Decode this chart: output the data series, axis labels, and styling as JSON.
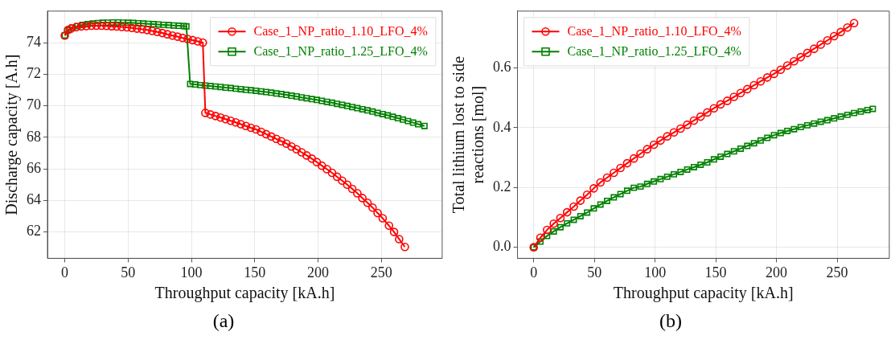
{
  "chart_data": [
    {
      "type": "line",
      "xlabel": "Throughput capacity [kA.h]",
      "ylabel": "Discharge capacity [A.h]",
      "xlim": [
        -13.7,
        298
      ],
      "xticks": [
        0,
        50,
        100,
        150,
        200,
        250
      ],
      "ylim": [
        60.33,
        76.0
      ],
      "yticks": [
        62,
        64,
        66,
        68,
        70,
        72,
        74
      ],
      "grid": true,
      "legend": "top right",
      "line_style": "solid",
      "annotations": [
        "(a)"
      ],
      "series": [
        {
          "name": "Case_1_NP_ratio_1.10_LFO_4%",
          "color": "#ff0000",
          "marker": "circle",
          "x": [
            0,
            2.5,
            5,
            9,
            13,
            17,
            21,
            25,
            29,
            33,
            37,
            41,
            45,
            49,
            53,
            57,
            61,
            65,
            69,
            73,
            77,
            81,
            85,
            89,
            93,
            97,
            101,
            105,
            109,
            111,
            115,
            119,
            123,
            127,
            131,
            135,
            139,
            143,
            147,
            151,
            155,
            159,
            163,
            167,
            171,
            175,
            179,
            183,
            187,
            191,
            195,
            199,
            203,
            207,
            211,
            215,
            219,
            223,
            227,
            231,
            235,
            239,
            243,
            247,
            251,
            256,
            260,
            264,
            268.5
          ],
          "values": [
            74.45,
            74.8,
            74.9,
            74.98,
            75.03,
            75.05,
            75.07,
            75.07,
            75.07,
            75.06,
            75.04,
            75.02,
            75.0,
            74.97,
            74.93,
            74.89,
            74.85,
            74.8,
            74.74,
            74.68,
            74.61,
            74.53,
            74.45,
            74.38,
            74.3,
            74.23,
            74.16,
            74.08,
            74.0,
            69.55,
            69.45,
            69.35,
            69.25,
            69.15,
            69.05,
            68.95,
            68.83,
            68.72,
            68.6,
            68.5,
            68.35,
            68.2,
            68.05,
            67.9,
            67.75,
            67.6,
            67.42,
            67.24,
            67.05,
            66.85,
            66.65,
            66.43,
            66.2,
            65.98,
            65.75,
            65.5,
            65.25,
            65.0,
            64.73,
            64.45,
            64.15,
            63.85,
            63.55,
            63.2,
            62.87,
            62.4,
            62.0,
            61.55,
            61.05
          ]
        },
        {
          "name": "Case_1_NP_ratio_1.25_LFO_4%",
          "color": "#008000",
          "marker": "square",
          "x": [
            0,
            3,
            6,
            10,
            14,
            18,
            22,
            26,
            30,
            34,
            38,
            42,
            46,
            50,
            54,
            58,
            62,
            66,
            70,
            74,
            78,
            82,
            86,
            90,
            94,
            96,
            99,
            103,
            107,
            111,
            115,
            119,
            123,
            127,
            131,
            135,
            139,
            143,
            147,
            151,
            155,
            159,
            163,
            167,
            171,
            175,
            179,
            183,
            187,
            191,
            195,
            199,
            203,
            207,
            211,
            215,
            219,
            223,
            227,
            231,
            235,
            239,
            243,
            247,
            251,
            255,
            259,
            263,
            267,
            271,
            275,
            279,
            284
          ],
          "values": [
            74.45,
            74.8,
            74.95,
            75.05,
            75.12,
            75.17,
            75.21,
            75.24,
            75.26,
            75.27,
            75.28,
            75.28,
            75.27,
            75.26,
            75.25,
            75.23,
            75.21,
            75.19,
            75.17,
            75.15,
            75.13,
            75.11,
            75.09,
            75.07,
            75.05,
            75.03,
            71.38,
            71.35,
            71.31,
            71.28,
            71.25,
            71.22,
            71.19,
            71.15,
            71.12,
            71.08,
            71.05,
            71.01,
            70.98,
            70.95,
            70.91,
            70.87,
            70.83,
            70.78,
            70.74,
            70.69,
            70.64,
            70.59,
            70.53,
            70.48,
            70.42,
            70.37,
            70.31,
            70.25,
            70.19,
            70.12,
            70.06,
            69.99,
            69.92,
            69.85,
            69.78,
            69.71,
            69.63,
            69.55,
            69.47,
            69.39,
            69.3,
            69.21,
            69.12,
            69.03,
            68.93,
            68.83,
            68.72
          ]
        }
      ]
    },
    {
      "type": "line",
      "xlabel": "Throughput capacity [kA.h]",
      "ylabel": "Total lithium lost to side\nreactions [mol]",
      "xlim": [
        -13.4,
        293
      ],
      "xticks": [
        0,
        50,
        100,
        150,
        200,
        250
      ],
      "ylim": [
        -0.037,
        0.79
      ],
      "yticks": [
        {
          "value": 0,
          "label": "0.0"
        },
        {
          "value": 0.2,
          "label": "0.2"
        },
        {
          "value": 0.4,
          "label": "0.4"
        },
        {
          "value": 0.6,
          "label": "0.6"
        }
      ],
      "grid": true,
      "legend": "top left",
      "line_style": "solid",
      "annotations": [
        "(b)"
      ],
      "series": [
        {
          "name": "Case_1_NP_ratio_1.10_LFO_4%",
          "color": "#ff0000",
          "marker": "circle",
          "x": [
            0,
            5.5,
            11,
            16.5,
            22,
            27.5,
            33,
            38.5,
            44,
            49.5,
            55,
            60.5,
            66,
            71.5,
            77,
            82.5,
            88,
            93.5,
            99,
            104.5,
            110,
            115.5,
            121,
            126.5,
            132,
            137.5,
            143,
            148.5,
            154,
            159.5,
            165,
            170.5,
            176,
            181.5,
            187,
            192.5,
            198,
            203.5,
            209,
            214.5,
            220,
            225.5,
            231,
            236.5,
            242,
            247.5,
            253,
            258.5,
            264
          ],
          "values": [
            0,
            0.032,
            0.058,
            0.079,
            0.098,
            0.117,
            0.136,
            0.156,
            0.176,
            0.197,
            0.217,
            0.233,
            0.249,
            0.265,
            0.281,
            0.297,
            0.313,
            0.328,
            0.343,
            0.357,
            0.371,
            0.384,
            0.397,
            0.41,
            0.424,
            0.437,
            0.451,
            0.465,
            0.478,
            0.49,
            0.503,
            0.516,
            0.529,
            0.542,
            0.555,
            0.568,
            0.58,
            0.594,
            0.608,
            0.622,
            0.636,
            0.65,
            0.664,
            0.678,
            0.692,
            0.706,
            0.72,
            0.735,
            0.75
          ]
        },
        {
          "name": "Case_1_NP_ratio_1.25_LFO_4%",
          "color": "#008000",
          "marker": "square",
          "x": [
            0,
            5.5,
            11,
            16.5,
            22,
            27.5,
            33,
            38.5,
            44,
            49.5,
            55,
            60.5,
            66,
            71.5,
            77,
            82.5,
            88,
            93.5,
            99,
            104.5,
            110,
            115.5,
            121,
            126.5,
            132,
            137.5,
            143,
            148.5,
            154,
            159.5,
            165,
            170.5,
            176,
            181.5,
            187,
            192.5,
            198,
            203.5,
            209,
            214.5,
            220,
            225.5,
            231,
            236.5,
            242,
            247.5,
            253,
            258.5,
            264,
            269.5,
            275,
            279.4
          ],
          "values": [
            0,
            0.019,
            0.038,
            0.053,
            0.067,
            0.08,
            0.092,
            0.104,
            0.116,
            0.13,
            0.143,
            0.155,
            0.167,
            0.178,
            0.189,
            0.199,
            0.203,
            0.212,
            0.22,
            0.228,
            0.236,
            0.244,
            0.252,
            0.26,
            0.268,
            0.276,
            0.284,
            0.294,
            0.303,
            0.312,
            0.321,
            0.33,
            0.339,
            0.348,
            0.357,
            0.366,
            0.375,
            0.382,
            0.389,
            0.395,
            0.402,
            0.408,
            0.414,
            0.42,
            0.425,
            0.431,
            0.437,
            0.443,
            0.449,
            0.454,
            0.459,
            0.463
          ]
        }
      ]
    }
  ]
}
